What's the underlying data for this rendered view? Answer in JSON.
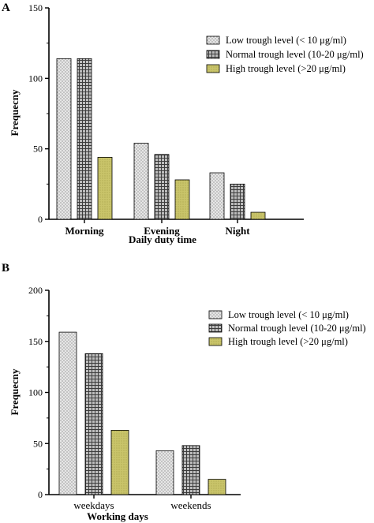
{
  "panel_labels": [
    "A",
    "B"
  ],
  "chart_data": [
    {
      "type": "bar",
      "categories": [
        "Morning",
        "Evening",
        "Night"
      ],
      "series": [
        {
          "name": "Low trough level (< 10 μg/ml)",
          "values": [
            114,
            54,
            33
          ]
        },
        {
          "name": "Normal trough level (10-20 μg/ml)",
          "values": [
            114,
            46,
            25
          ]
        },
        {
          "name": "High trough level (>20 μg/ml)",
          "values": [
            44,
            28,
            5
          ]
        }
      ],
      "xlabel": "Daily duty time",
      "ylabel": "Frequecny",
      "ylim": [
        0,
        150
      ],
      "yticks": [
        0,
        50,
        100,
        150
      ],
      "legend_position": "top-right",
      "grid": false
    },
    {
      "type": "bar",
      "categories": [
        "weekdays",
        "weekends"
      ],
      "series": [
        {
          "name": "Low trough level (< 10 μg/ml)",
          "values": [
            159,
            43
          ]
        },
        {
          "name": "Normal trough level (10-20 μg/ml)",
          "values": [
            138,
            48
          ]
        },
        {
          "name": "High trough level (>20 μg/ml)",
          "values": [
            63,
            15
          ]
        }
      ],
      "xlabel": "Working days",
      "ylabel": "Frequecny",
      "ylim": [
        0,
        200
      ],
      "yticks": [
        0,
        50,
        100,
        150,
        200
      ],
      "legend_position": "top-right",
      "grid": false
    }
  ]
}
